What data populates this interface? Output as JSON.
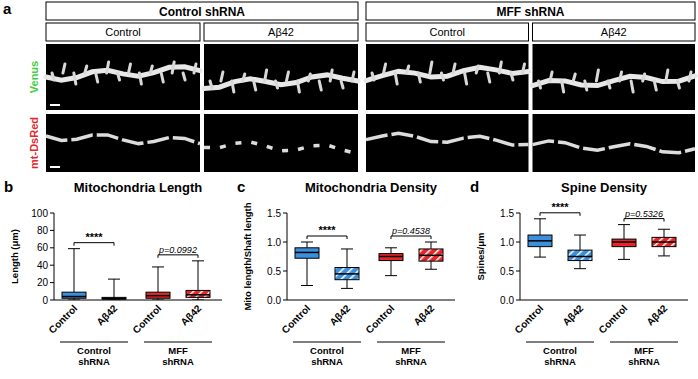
{
  "image_panel": {
    "label": "a",
    "groups": [
      "Control shRNA",
      "MFF shRNA"
    ],
    "conditions": [
      "Control",
      "Aβ42",
      "Control",
      "Aβ42"
    ],
    "channels": [
      "Venus",
      "mt-DsRed"
    ],
    "colors": [
      "#3fcf3f",
      "#e8262a"
    ]
  },
  "chart_data": [
    {
      "type": "box",
      "panel_label": "b",
      "title": "Mitochondria Length",
      "y_label": "Length (μm)",
      "categories": [
        "Control",
        "Aβ42",
        "Control",
        "Aβ42"
      ],
      "groups": [
        "Control shRNA",
        "MFF shRNA"
      ],
      "boxes": [
        {
          "min": 0,
          "q1": 2,
          "median": 4,
          "q3": 9,
          "max": 59
        },
        {
          "min": 0,
          "q1": 1,
          "median": 1.5,
          "q3": 3,
          "max": 24
        },
        {
          "min": 0,
          "q1": 2,
          "median": 5,
          "q3": 9,
          "max": 38
        },
        {
          "min": 0,
          "q1": 3,
          "median": 6,
          "q3": 11,
          "max": 45
        }
      ],
      "colors": [
        "#3b8fdb",
        "#3b8fdb",
        "#e8262a",
        "#e8262a"
      ],
      "comparisons": [
        "****",
        "p=0.0992"
      ],
      "ylim": [
        0,
        100
      ],
      "yticks": [
        0,
        20,
        40,
        60,
        80,
        100
      ]
    },
    {
      "type": "box",
      "panel_label": "c",
      "title": "Mitochondria Density",
      "y_label": "Mito length/Shaft length",
      "categories": [
        "Control",
        "Aβ42",
        "Control",
        "Aβ42"
      ],
      "groups": [
        "Control shRNA",
        "MFF shRNA"
      ],
      "boxes": [
        {
          "min": 0.25,
          "q1": 0.72,
          "median": 0.82,
          "q3": 0.9,
          "max": 1.0
        },
        {
          "min": 0.2,
          "q1": 0.35,
          "median": 0.45,
          "q3": 0.56,
          "max": 0.88
        },
        {
          "min": 0.42,
          "q1": 0.68,
          "median": 0.75,
          "q3": 0.8,
          "max": 0.9
        },
        {
          "min": 0.53,
          "q1": 0.67,
          "median": 0.77,
          "q3": 0.88,
          "max": 1.0
        }
      ],
      "colors": [
        "#3b8fdb",
        "#3b8fdb",
        "#e8262a",
        "#e8262a"
      ],
      "comparisons": [
        "****",
        "p=0.4538"
      ],
      "ylim": [
        0,
        1.5
      ],
      "yticks": [
        {
          "value": 0,
          "label": "0.0"
        },
        0.5,
        {
          "value": 1,
          "label": "1.0"
        },
        1.5
      ]
    },
    {
      "type": "box",
      "panel_label": "d",
      "title": "Spine Density",
      "y_label": "Spines/μm",
      "categories": [
        "Control",
        "Aβ42",
        "Control",
        "Aβ42"
      ],
      "groups": [
        "Control shRNA",
        "MFF shRNA"
      ],
      "boxes": [
        {
          "min": 0.74,
          "q1": 0.92,
          "median": 1.02,
          "q3": 1.12,
          "max": 1.4
        },
        {
          "min": 0.54,
          "q1": 0.68,
          "median": 0.75,
          "q3": 0.86,
          "max": 1.12
        },
        {
          "min": 0.7,
          "q1": 0.92,
          "median": 1.0,
          "q3": 1.05,
          "max": 1.3
        },
        {
          "min": 0.76,
          "q1": 0.92,
          "median": 1.0,
          "q3": 1.08,
          "max": 1.22
        }
      ],
      "colors": [
        "#3b8fdb",
        "#3b8fdb",
        "#e8262a",
        "#e8262a"
      ],
      "comparisons": [
        "****",
        "p=0.5326"
      ],
      "ylim": [
        0,
        1.5
      ],
      "yticks": [
        {
          "value": 0,
          "label": "0.0"
        },
        0.5,
        {
          "value": 1,
          "label": "1.0"
        },
        1.5
      ]
    }
  ]
}
